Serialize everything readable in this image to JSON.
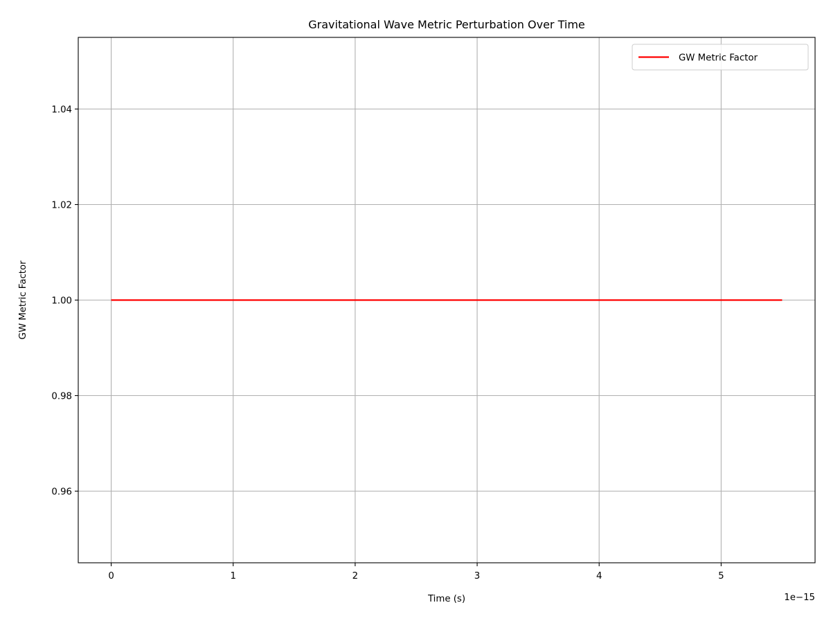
{
  "chart_data": {
    "type": "line",
    "title": "Gravitational Wave Metric Perturbation Over Time",
    "xlabel": "Time (s)",
    "ylabel": "GW Metric Factor",
    "x_offset_label": "1e−15",
    "xlim": [
      -0.27,
      5.77
    ],
    "ylim": [
      0.945,
      1.055
    ],
    "xticks": [
      0,
      1,
      2,
      3,
      4,
      5
    ],
    "xtick_labels": [
      "0",
      "1",
      "2",
      "3",
      "4",
      "5"
    ],
    "yticks": [
      0.96,
      0.98,
      1.0,
      1.02,
      1.04
    ],
    "ytick_labels": [
      "0.96",
      "0.98",
      "1.00",
      "1.02",
      "1.04"
    ],
    "grid": true,
    "legend_position": "top-right",
    "series": [
      {
        "name": "GW Metric Factor",
        "color": "#ff0000",
        "x": [
          0,
          5.5
        ],
        "y": [
          1.0,
          1.0
        ]
      }
    ]
  }
}
